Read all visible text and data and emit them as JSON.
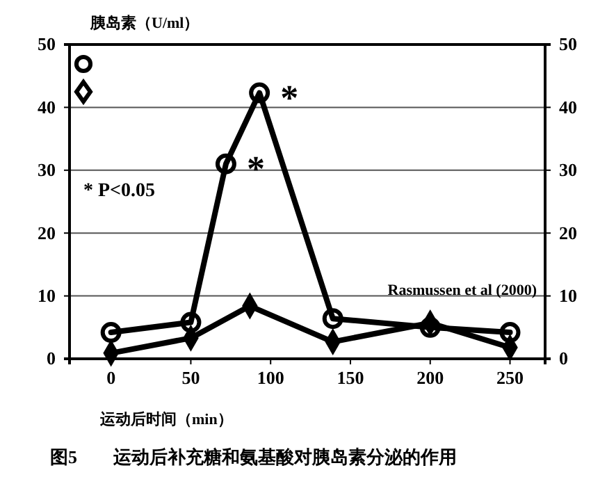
{
  "chart_data": {
    "type": "line",
    "ylabel": "胰岛素（U/ml）",
    "xlabel": "运动后时间（min）",
    "xlim": [
      -26,
      272
    ],
    "xticks": [
      0,
      50,
      100,
      150,
      200,
      250
    ],
    "ylim": [
      0,
      50
    ],
    "yticks": [
      0,
      10,
      20,
      30,
      40,
      50
    ],
    "y2lim": [
      0,
      50
    ],
    "y2ticks": [
      0,
      10,
      20,
      30,
      40,
      50
    ],
    "grid": "y",
    "line_style": "solid",
    "series": [
      {
        "color": "#000000",
        "marker": "circle",
        "x": [
          0,
          50,
          72,
          93,
          139,
          200,
          250
        ],
        "values": [
          4.2,
          5.8,
          31,
          42.3,
          6.4,
          5,
          4.2
        ]
      },
      {
        "color": "#000000",
        "marker": "diamond",
        "x": [
          0,
          50,
          87,
          139,
          200,
          250
        ],
        "values": [
          0.9,
          3.3,
          8.4,
          2.7,
          5.7,
          1.8
        ]
      }
    ],
    "annotations": [
      {
        "text": "*",
        "x": 72,
        "y": 31
      },
      {
        "text": "*",
        "x": 93,
        "y": 42.3
      },
      "* P<0.05",
      "Rasmussen et al (2000)",
      "图5　　运动后补充糖和氨基酸对胰岛素分泌的作用"
    ]
  }
}
